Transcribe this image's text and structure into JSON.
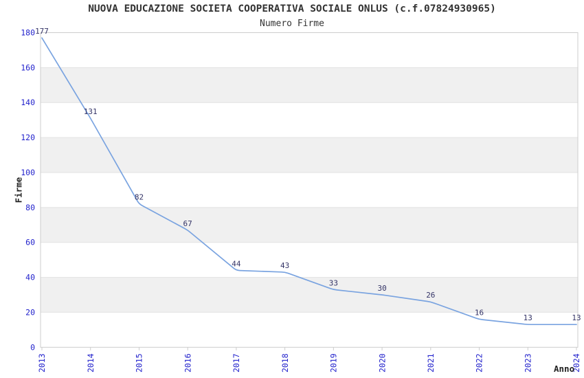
{
  "chart_data": {
    "type": "line",
    "title": "NUOVA EDUCAZIONE SOCIETA COOPERATIVA SOCIALE ONLUS (c.f.07824930965)",
    "subtitle": "Numero Firme",
    "xlabel": "Anno",
    "ylabel": "Firme",
    "categories": [
      "2013",
      "2014",
      "2015",
      "2016",
      "2017",
      "2018",
      "2019",
      "2020",
      "2021",
      "2022",
      "2023",
      "2024"
    ],
    "series": [
      {
        "name": "Numero Firme",
        "values": [
          177,
          131,
          82,
          67,
          44,
          43,
          33,
          30,
          26,
          16,
          13,
          13
        ]
      }
    ],
    "data_labels": [
      177,
      131,
      82,
      67,
      44,
      43,
      33,
      30,
      26,
      16,
      13,
      13
    ],
    "ylim": [
      0,
      180
    ],
    "ytick_step": 20,
    "yticks": [
      0,
      20,
      40,
      60,
      80,
      100,
      120,
      140,
      160,
      180
    ],
    "legend": "none",
    "grid": "horizontal-bands-alternating",
    "colors": {
      "background": "#ffffff",
      "line": "#79a3e0",
      "tick_label": "#2222cc",
      "data_label": "#333366",
      "band": "#f0f0f0",
      "grid_line": "#e2e2e2",
      "border": "#cccccc",
      "title": "#333333"
    }
  }
}
